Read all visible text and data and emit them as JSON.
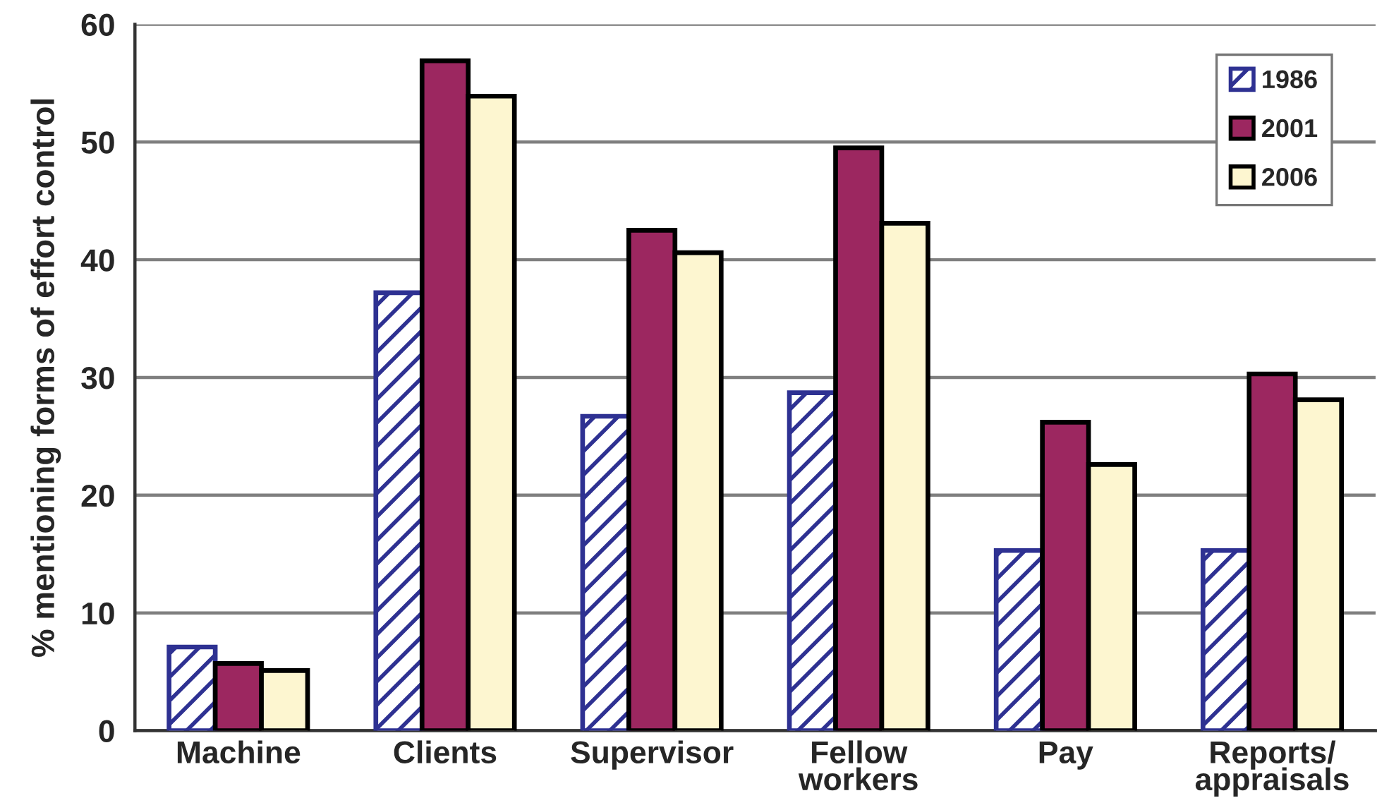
{
  "chart_data": {
    "type": "bar",
    "ylabel": "% mentioning forms of effort control",
    "categories": [
      "Machine",
      "Clients",
      "Supervisor",
      "Fellow\nworkers",
      "Pay",
      "Reports/\nappraisals"
    ],
    "series": [
      {
        "name": "1986",
        "color": "#2e3192",
        "values": [
          7.1,
          37.2,
          26.7,
          28.7,
          15.3,
          15.3
        ]
      },
      {
        "name": "2001",
        "color": "#9c2760",
        "values": [
          5.7,
          56.9,
          42.5,
          49.5,
          26.2,
          30.3
        ]
      },
      {
        "name": "2006",
        "color": "#fdf6d0",
        "values": [
          5.1,
          53.9,
          40.6,
          43.1,
          22.6,
          28.1
        ]
      }
    ],
    "ylim": [
      0,
      60
    ],
    "yticks": [
      0,
      10,
      20,
      30,
      40,
      50,
      60
    ],
    "grid": "y",
    "legend": "top right"
  }
}
